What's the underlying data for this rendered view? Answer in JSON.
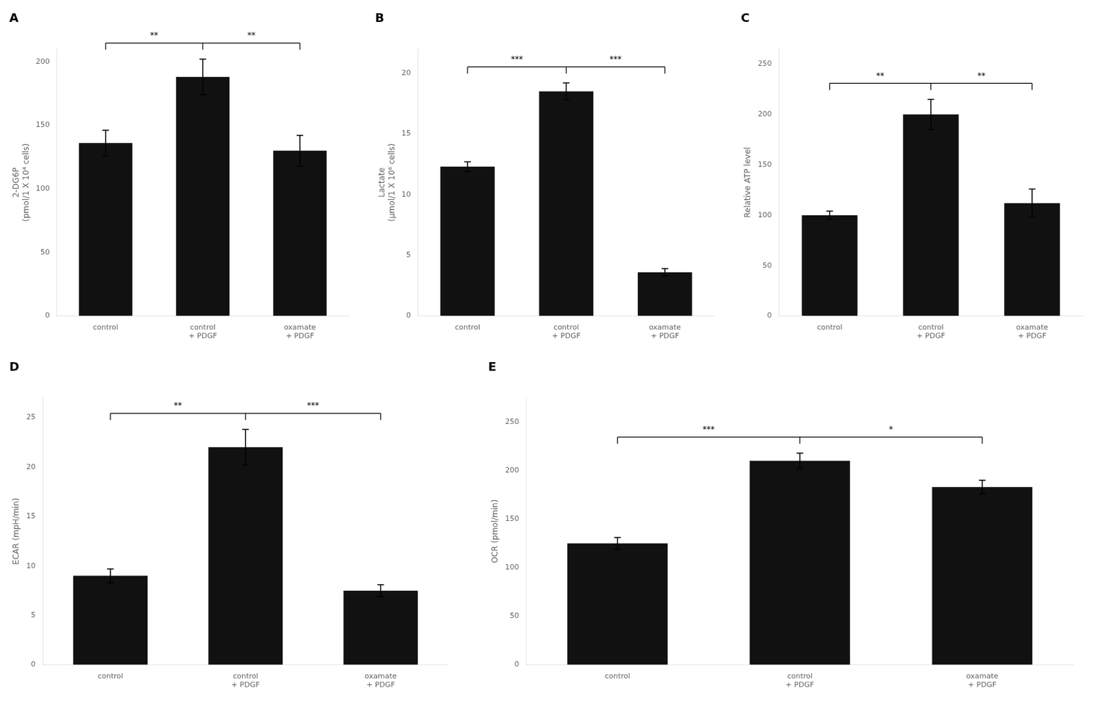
{
  "chart_data": [
    {
      "type": "bar",
      "title": "A",
      "ylabel": "2-DG6P\n(pmol/1 X 10⁴ cells)",
      "categories": [
        "control",
        "control\n+ PDGF",
        "oxamate\n+ PDGF"
      ],
      "values": [
        136,
        188,
        130
      ],
      "errors": [
        10,
        14,
        12
      ],
      "color": "#111111",
      "ylim": [
        0,
        210
      ],
      "yticks": [
        0,
        50,
        100,
        150,
        200
      ],
      "grid": false,
      "annotations": [
        {
          "text": "**",
          "between": [
            "control",
            "control\n+ PDGF"
          ]
        },
        {
          "text": "**",
          "between": [
            "control\n+ PDGF",
            "oxamate\n+ PDGF"
          ]
        }
      ]
    },
    {
      "type": "bar",
      "title": "B",
      "ylabel": "Lactate\n(μmol/1 X 10⁶ cells)",
      "categories": [
        "control",
        "control\n+ PDGF",
        "oxamate\n+ PDGF"
      ],
      "values": [
        12.3,
        18.5,
        3.6
      ],
      "errors": [
        0.4,
        0.7,
        0.3
      ],
      "color": "#111111",
      "ylim": [
        0,
        22
      ],
      "yticks": [
        0,
        5,
        10,
        15,
        20
      ],
      "grid": false,
      "annotations": [
        {
          "text": "***",
          "between": [
            "control",
            "control\n+ PDGF"
          ]
        },
        {
          "text": "***",
          "between": [
            "control\n+ PDGF",
            "oxamate\n+ PDGF"
          ]
        }
      ]
    },
    {
      "type": "bar",
      "title": "C",
      "ylabel": "Relative ATP level",
      "categories": [
        "control",
        "control\n+ PDGF",
        "oxamate\n+ PDGF"
      ],
      "values": [
        100,
        200,
        112
      ],
      "errors": [
        4,
        15,
        14
      ],
      "color": "#111111",
      "ylim": [
        0,
        265
      ],
      "yticks": [
        0,
        50,
        100,
        150,
        200,
        250
      ],
      "grid": false,
      "annotations": [
        {
          "text": "**",
          "between": [
            "control",
            "control\n+ PDGF"
          ]
        },
        {
          "text": "**",
          "between": [
            "control\n+ PDGF",
            "oxamate\n+ PDGF"
          ]
        }
      ]
    },
    {
      "type": "bar",
      "title": "D",
      "ylabel": "ECAR (mpH/min)",
      "categories": [
        "control",
        "control\n+ PDGF",
        "oxamate\n+ PDGF"
      ],
      "values": [
        9.0,
        22.0,
        7.5
      ],
      "errors": [
        0.7,
        1.8,
        0.6
      ],
      "color": "#111111",
      "ylim": [
        0,
        27
      ],
      "yticks": [
        0,
        5,
        10,
        15,
        20,
        25
      ],
      "grid": false,
      "annotations": [
        {
          "text": "**",
          "between": [
            "control",
            "control\n+ PDGF"
          ]
        },
        {
          "text": "***",
          "between": [
            "control\n+ PDGF",
            "oxamate\n+ PDGF"
          ]
        }
      ]
    },
    {
      "type": "bar",
      "title": "E",
      "ylabel": "OCR (pmol/min)",
      "categories": [
        "control",
        "control\n+ PDGF",
        "oxamate\n+ PDGF"
      ],
      "values": [
        125,
        210,
        183
      ],
      "errors": [
        6,
        8,
        7
      ],
      "color": "#111111",
      "ylim": [
        0,
        275
      ],
      "yticks": [
        0,
        50,
        100,
        150,
        200,
        250
      ],
      "grid": false,
      "annotations": [
        {
          "text": "***",
          "between": [
            "control",
            "control\n+ PDGF"
          ]
        },
        {
          "text": "*",
          "between": [
            "control\n+ PDGF",
            "oxamate\n+ PDGF"
          ]
        }
      ]
    }
  ]
}
